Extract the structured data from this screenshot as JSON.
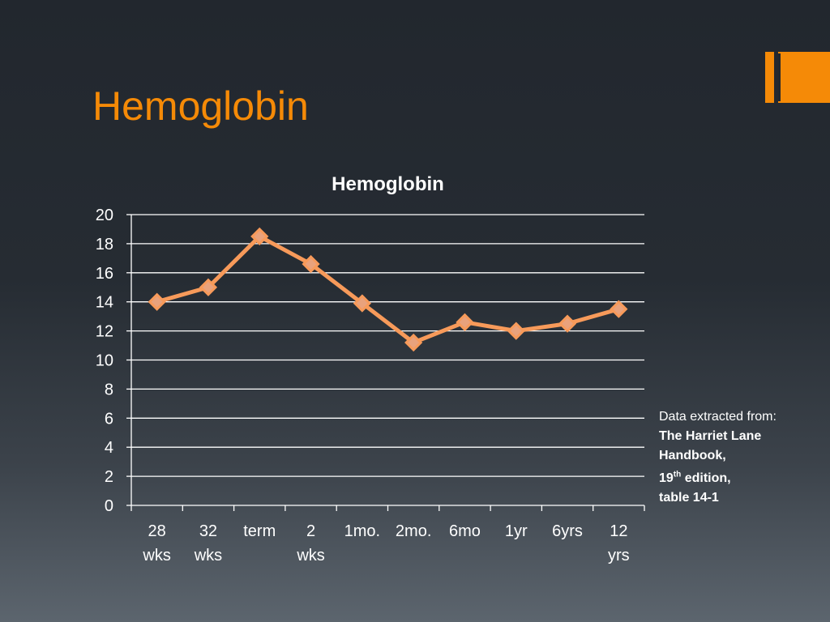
{
  "slide_title": "Hemoglobin",
  "note": {
    "line1": "Data extracted from:",
    "line2": "The Harriet Lane",
    "line3": "Handbook,",
    "line4_num": "19",
    "line4_sup": "th",
    "line4_rest": " edition,",
    "line5": "table 14-1"
  },
  "colors": {
    "accent": "#f58a07",
    "series": "#f79a5a",
    "grid": "#ffffff"
  },
  "chart_data": {
    "type": "line",
    "title": "Hemoglobin",
    "categories": [
      "28\nwks",
      "32\nwks",
      "term",
      "2\nwks",
      "1mo.",
      "2mo.",
      "6mo",
      "1yr",
      "6yrs",
      "12\nyrs"
    ],
    "values": [
      14,
      15,
      18.5,
      16.6,
      13.9,
      11.2,
      12.6,
      12,
      12.5,
      13.5
    ],
    "ylim": [
      0,
      20
    ],
    "yticks": [
      "0",
      "2",
      "4",
      "6",
      "8",
      "10",
      "12",
      "14",
      "16",
      "18",
      "20"
    ],
    "grid": true,
    "legend": "none",
    "marker": "diamond"
  }
}
